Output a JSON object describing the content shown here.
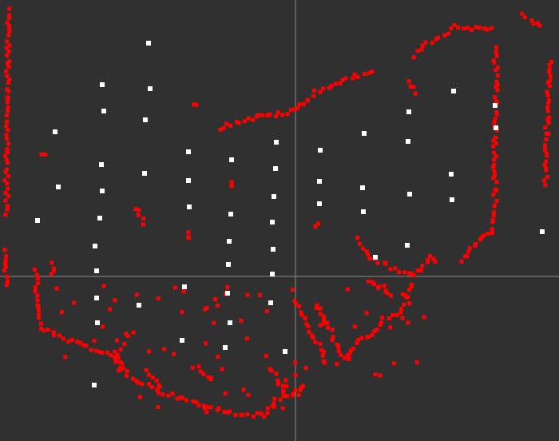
{
  "view": {
    "background": "#303030",
    "crosshair_color": "#8a8a8a"
  },
  "point_styles": {
    "scan_color": "#ff0000",
    "marker_color": "#ffffff"
  }
}
